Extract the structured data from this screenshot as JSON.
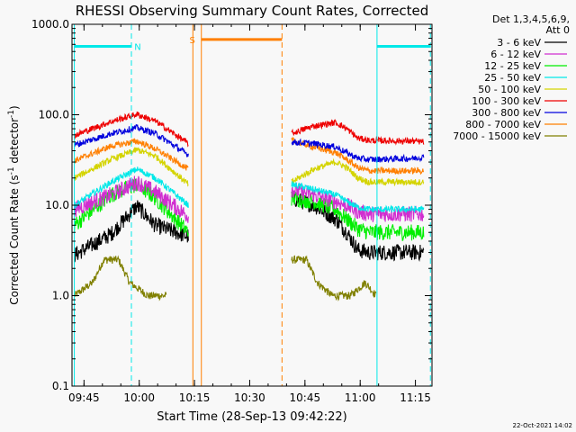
{
  "chart_data": {
    "type": "line",
    "title": "RHESSI Observing Summary Count Rates, Corrected",
    "xlabel": "Start Time (28-Sep-13 09:42:22)",
    "ylabel": "Corrected Count Rate (s⁻¹ detector⁻¹)",
    "yscale": "log",
    "ylim": [
      0.1,
      1000
    ],
    "xlim_minutes": [
      -0.63,
      97.13
    ],
    "x_ticks": [
      "09:45",
      "10:00",
      "10:15",
      "10:30",
      "10:45",
      "11:00",
      "11:15"
    ],
    "y_ticks": [
      "0.1",
      "1.0",
      "10.0",
      "100.0",
      "1000.0"
    ],
    "legend_header": [
      "Det 1,3,4,5,6,9,",
      "Att 0"
    ],
    "legend_position": "right",
    "footer": "22-Oct-2021 14:02",
    "data_gap": [
      "10:17",
      "10:39"
    ],
    "series": [
      {
        "name": "3 - 6 keV",
        "color": "#000000",
        "seg1": [
          [
            0,
            2.8
          ],
          [
            10,
            4.8
          ],
          [
            17,
            9.8
          ],
          [
            22,
            6.0
          ],
          [
            31,
            4.5
          ]
        ],
        "seg2": [
          [
            59,
            12
          ],
          [
            65,
            10
          ],
          [
            71,
            7
          ],
          [
            74,
            5
          ],
          [
            77,
            3.2
          ],
          [
            80,
            3.0
          ],
          [
            92,
            3.0
          ],
          [
            95,
            3.0
          ]
        ]
      },
      {
        "name": "6 - 12 keV",
        "color": "#d02ed0",
        "seg1": [
          [
            0,
            9
          ],
          [
            10,
            13
          ],
          [
            17,
            18
          ],
          [
            22,
            14
          ],
          [
            31,
            7.5
          ]
        ],
        "seg2": [
          [
            59,
            15
          ],
          [
            65,
            13
          ],
          [
            71,
            11
          ],
          [
            74,
            10
          ],
          [
            77,
            8.5
          ],
          [
            80,
            8.0
          ],
          [
            92,
            8.0
          ],
          [
            95,
            8.0
          ]
        ]
      },
      {
        "name": "12 - 25 keV",
        "color": "#00ee00",
        "seg1": [
          [
            0,
            6
          ],
          [
            10,
            13
          ],
          [
            17,
            17
          ],
          [
            22,
            12
          ],
          [
            31,
            5
          ]
        ],
        "seg2": [
          [
            59,
            12
          ],
          [
            65,
            11
          ],
          [
            71,
            9
          ],
          [
            74,
            7
          ],
          [
            77,
            5.5
          ],
          [
            80,
            5.0
          ],
          [
            92,
            5.0
          ],
          [
            95,
            5.0
          ]
        ]
      },
      {
        "name": "25 - 50 keV",
        "color": "#00e8e8",
        "seg1": [
          [
            0,
            10
          ],
          [
            10,
            18
          ],
          [
            17,
            25
          ],
          [
            22,
            20
          ],
          [
            31,
            10
          ]
        ],
        "seg2": [
          [
            59,
            17
          ],
          [
            65,
            15
          ],
          [
            71,
            13
          ],
          [
            74,
            11
          ],
          [
            77,
            9.5
          ],
          [
            80,
            9.0
          ],
          [
            92,
            9.0
          ],
          [
            95,
            9.0
          ]
        ]
      },
      {
        "name": "50 - 100 keV",
        "color": "#d4d400",
        "seg1": [
          [
            0,
            20
          ],
          [
            10,
            32
          ],
          [
            17,
            41
          ],
          [
            22,
            35
          ],
          [
            31,
            17
          ]
        ],
        "seg2": [
          [
            59,
            18
          ],
          [
            65,
            25
          ],
          [
            71,
            30
          ],
          [
            74,
            26
          ],
          [
            77,
            20
          ],
          [
            80,
            18
          ],
          [
            92,
            18
          ],
          [
            95,
            18
          ]
        ]
      },
      {
        "name": "100 - 300 keV",
        "color": "#ee0000",
        "seg1": [
          [
            0,
            59
          ],
          [
            10,
            84
          ],
          [
            17,
            101
          ],
          [
            22,
            85
          ],
          [
            31,
            48
          ]
        ],
        "seg2": [
          [
            59,
            62
          ],
          [
            65,
            75
          ],
          [
            71,
            82
          ],
          [
            74,
            70
          ],
          [
            77,
            55
          ],
          [
            80,
            52
          ],
          [
            92,
            51
          ],
          [
            95,
            50
          ]
        ]
      },
      {
        "name": "300 - 800 keV",
        "color": "#0000dd",
        "seg1": [
          [
            0,
            46
          ],
          [
            10,
            62
          ],
          [
            17,
            72
          ],
          [
            22,
            62
          ],
          [
            31,
            36
          ]
        ],
        "seg2": [
          [
            59,
            50
          ],
          [
            65,
            48
          ],
          [
            71,
            44
          ],
          [
            74,
            38
          ],
          [
            77,
            33
          ],
          [
            80,
            32
          ],
          [
            92,
            33
          ],
          [
            95,
            34
          ]
        ]
      },
      {
        "name": "800 - 7000 keV",
        "color": "#ff7f00",
        "seg1": [
          [
            0,
            31
          ],
          [
            10,
            45
          ],
          [
            17,
            51
          ],
          [
            22,
            42
          ],
          [
            31,
            25
          ]
        ],
        "seg2": [
          [
            59,
            52
          ],
          [
            65,
            44
          ],
          [
            71,
            38
          ],
          [
            74,
            32
          ],
          [
            77,
            26
          ],
          [
            80,
            24
          ],
          [
            92,
            24
          ],
          [
            95,
            24
          ]
        ]
      },
      {
        "name": "7000 - 15000 keV",
        "color": "#808000",
        "seg1": [
          [
            0,
            1.0
          ],
          [
            5,
            1.4
          ],
          [
            8,
            2.5
          ],
          [
            12,
            2.5
          ],
          [
            15,
            1.4
          ],
          [
            20,
            1.0
          ],
          [
            25,
            1.0
          ]
        ],
        "seg2": [
          [
            59,
            2.5
          ],
          [
            63,
            2.5
          ],
          [
            66,
            1.4
          ],
          [
            70,
            1.0
          ],
          [
            75,
            1.0
          ],
          [
            79,
            1.4
          ],
          [
            82,
            1.0
          ]
        ]
      }
    ],
    "annotations": [
      {
        "label": "N",
        "color": "#00e8e8",
        "bar_start": 0,
        "bar_end": 15.5,
        "level": 570,
        "dashed_line_at": 15.5
      },
      {
        "label": "",
        "color": "#00e8e8",
        "bar_start": 82.2,
        "bar_end": 96.7,
        "level": 570,
        "dashed_line_at": 96.7
      },
      {
        "label": "S",
        "color": "#ff7f00",
        "bar_start": 34.5,
        "bar_end": 56.4,
        "level": 680,
        "dashed_line_at": 56.4
      },
      {
        "label": "",
        "color": "#ff7f00",
        "solid_line_at": 32.2
      }
    ]
  }
}
